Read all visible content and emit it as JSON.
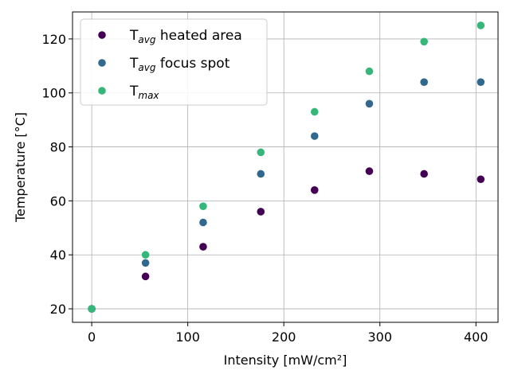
{
  "chart_data": {
    "type": "scatter",
    "title": "",
    "xlabel": "Intensity [mW/cm²]",
    "ylabel": "Temperature [°C]",
    "xlim": [
      -20,
      423
    ],
    "ylim": [
      15,
      130
    ],
    "xticks": [
      0,
      100,
      200,
      300,
      400
    ],
    "yticks": [
      20,
      40,
      60,
      80,
      100,
      120
    ],
    "grid": true,
    "legend_position": "top-left",
    "x": [
      0,
      56,
      116,
      176,
      232,
      289,
      346,
      405
    ],
    "series": [
      {
        "name": "T_avg heated area",
        "name_main": "T",
        "name_sub": "avg",
        "name_rest": " heated area",
        "color": "#440154",
        "values": [
          20,
          32,
          43,
          56,
          64,
          71,
          70,
          68
        ]
      },
      {
        "name": "T_avg focus spot",
        "name_main": "T",
        "name_sub": "avg",
        "name_rest": " focus spot",
        "color": "#31688e",
        "values": [
          20,
          37,
          52,
          70,
          84,
          96,
          104,
          104
        ]
      },
      {
        "name": "T_max",
        "name_main": "T",
        "name_sub": "max",
        "name_rest": "",
        "color": "#35b779",
        "values": [
          20,
          40,
          58,
          78,
          93,
          108,
          119,
          125
        ]
      }
    ]
  }
}
